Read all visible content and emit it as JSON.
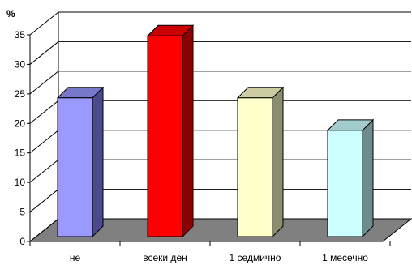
{
  "chart_data": {
    "type": "bar",
    "y_unit_label": "%",
    "categories": [
      "не",
      "всеки ден",
      "1 седмично",
      "1 месечно"
    ],
    "values": [
      23.5,
      34,
      23.5,
      18
    ],
    "ylim": [
      0,
      35
    ],
    "yticks": [
      0,
      5,
      10,
      15,
      20,
      25,
      30,
      35
    ],
    "grid": true,
    "legend": "none",
    "three_d": true,
    "colors": {
      "bars": [
        "#9999ff",
        "#ff0000",
        "#ffffcc",
        "#ccffff"
      ],
      "bar_sides": [
        "#4a4a8c",
        "#8c0000",
        "#8c8c6e",
        "#6e8c8c"
      ],
      "bar_tops": [
        "#7777cc",
        "#cc0000",
        "#cccca3",
        "#a3cccc"
      ],
      "floor": "#808080",
      "grid": "#000000"
    }
  }
}
